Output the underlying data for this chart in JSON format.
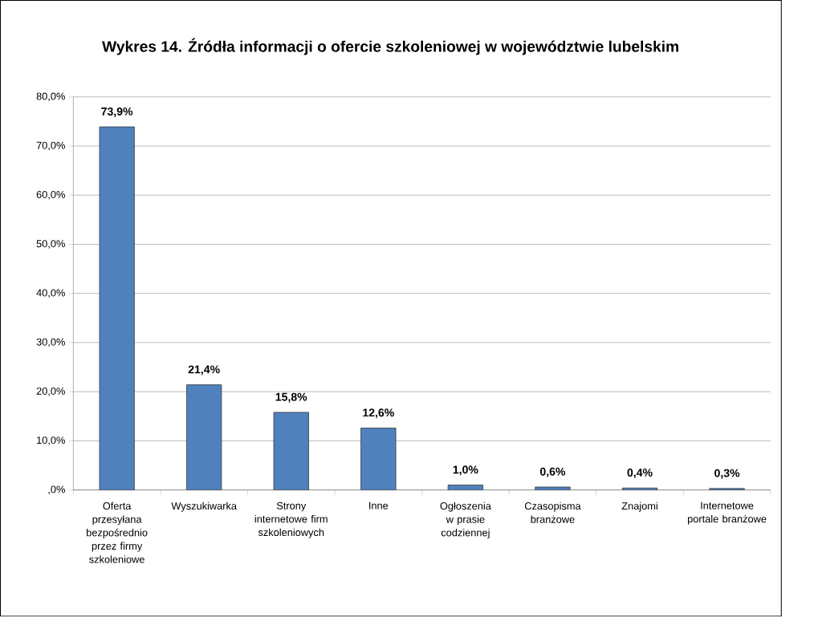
{
  "chart_data": {
    "type": "bar",
    "title": "Wykres 14. Źródła informacji o ofercie szkoleniowej w województwie lubelskim",
    "categories": [
      "Oferta przesyłana bezpośrednio przez firmy szkoleniowe",
      "Wyszukiwarka",
      "Strony internetowe firm szkoleniowych",
      "Inne",
      "Ogłoszenia w prasie codziennej",
      "Czasopisma branżowe",
      "Znajomi",
      "Internetowe portale branżowe"
    ],
    "values": [
      73.9,
      21.4,
      15.8,
      12.6,
      1.0,
      0.6,
      0.4,
      0.3
    ],
    "value_labels": [
      "73,9%",
      "21,4%",
      "15,8%",
      "12,6%",
      "1,0%",
      "0,6%",
      "0,4%",
      "0,3%"
    ],
    "color": "#4f81bd",
    "ylim": [
      0,
      80
    ],
    "yticks": [
      {
        "value": 0,
        "label": ",0%"
      },
      {
        "value": 10,
        "label": "10,0%"
      },
      {
        "value": 20,
        "label": "20,0%"
      },
      {
        "value": 30,
        "label": "30,0%"
      },
      {
        "value": 40,
        "label": "40,0%"
      },
      {
        "value": 50,
        "label": "50,0%"
      },
      {
        "value": 60,
        "label": "60,0%"
      },
      {
        "value": 70,
        "label": "70,0%"
      },
      {
        "value": 80,
        "label": "80,0%"
      }
    ],
    "grid": "y"
  }
}
